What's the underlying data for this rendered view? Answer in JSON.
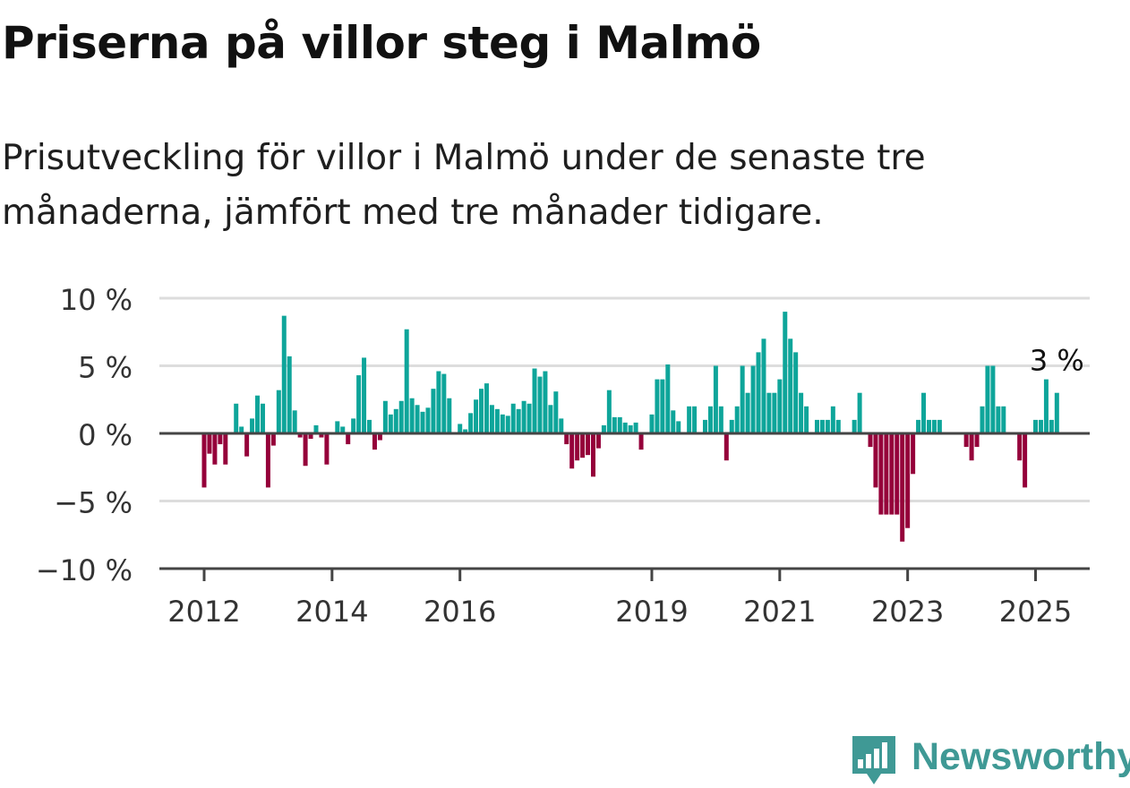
{
  "title": "Priserna på villor steg i Malmö",
  "subtitle": "Prisutveckling för villor i Malmö under de senaste tre månaderna, jämfört med tre månader tidigare.",
  "brand": {
    "name": "Newsworthy",
    "icon": "newsworthy-logo-icon"
  },
  "colors": {
    "positive": "#0ea59a",
    "negative": "#95003a",
    "grid": "#dddddd",
    "baseline": "#444444",
    "text": "#333333"
  },
  "chart_data": {
    "type": "bar",
    "title": "",
    "xlabel": "",
    "ylabel": "",
    "ylim": [
      -10,
      10
    ],
    "y_ticks": [
      {
        "value": 10,
        "label": "10 %"
      },
      {
        "value": 5,
        "label": "5 %"
      },
      {
        "value": 0,
        "label": "0 %"
      },
      {
        "value": -5,
        "label": "−5 %"
      },
      {
        "value": -10,
        "label": "−10 %"
      }
    ],
    "x_ticks": [
      {
        "year": 2012,
        "label": "2012"
      },
      {
        "year": 2014,
        "label": "2014"
      },
      {
        "year": 2016,
        "label": "2016"
      },
      {
        "year": 2019,
        "label": "2019"
      },
      {
        "year": 2021,
        "label": "2021"
      },
      {
        "year": 2023,
        "label": "2023"
      },
      {
        "year": 2025,
        "label": "2025"
      }
    ],
    "start": "2012-01",
    "frequency": "monthly",
    "values": [
      -4,
      -1.5,
      -2.3,
      -0.8,
      -2.3,
      0,
      2.2,
      0.5,
      -1.7,
      1.1,
      2.8,
      2.2,
      -4,
      -0.9,
      3.2,
      8.7,
      5.7,
      1.7,
      -0.3,
      -2.4,
      -0.4,
      0.6,
      -0.3,
      -2.3,
      0,
      0.9,
      0.5,
      -0.8,
      1.1,
      4.3,
      5.6,
      1,
      -1.2,
      -0.5,
      2.4,
      1.4,
      1.8,
      2.4,
      7.7,
      2.6,
      2.1,
      1.6,
      1.9,
      3.3,
      4.6,
      4.4,
      2.6,
      0,
      0.7,
      0.3,
      1.5,
      2.5,
      3.3,
      3.7,
      2.1,
      1.8,
      1.4,
      1.3,
      2.2,
      1.8,
      2.4,
      2.2,
      4.8,
      4.2,
      4.6,
      2.1,
      3.1,
      1.1,
      -0.8,
      -2.6,
      -2,
      -1.8,
      -1.6,
      -3.2,
      -1.1,
      0.6,
      3.2,
      1.2,
      1.2,
      0.8,
      0.6,
      0.8,
      -1.2,
      0,
      1.4,
      4,
      4,
      5.1,
      1.7,
      0.9,
      0,
      2,
      2,
      0,
      1,
      2,
      5,
      2,
      -2,
      1,
      2,
      5,
      3,
      5,
      6,
      7,
      3,
      3,
      4,
      9,
      7,
      6,
      3,
      2,
      0,
      1,
      1,
      1,
      2,
      1,
      0,
      0,
      1,
      3,
      0,
      -1,
      -4,
      -6,
      -6,
      -6,
      -6,
      -8,
      -7,
      -3,
      1,
      3,
      1,
      1,
      1,
      0,
      0,
      0,
      0,
      -1,
      -2,
      -1,
      2,
      5,
      5,
      2,
      2,
      0,
      0,
      -2,
      -4,
      0,
      1,
      1,
      4,
      1,
      3
    ],
    "annotation": {
      "label": "3 %",
      "value": 3,
      "month": "2025-05"
    }
  }
}
